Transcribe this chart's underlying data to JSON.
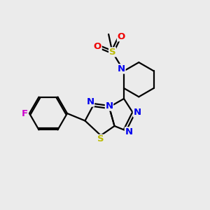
{
  "bg_color": "#ebebeb",
  "atom_colors": {
    "C": "#000000",
    "N": "#0000ee",
    "S": "#bbbb00",
    "O": "#ee0000",
    "F": "#cc00cc"
  },
  "bond_color": "#000000",
  "figure_size": [
    3.0,
    3.0
  ],
  "dpi": 100,
  "lw": 1.6,
  "fs": 9.5
}
